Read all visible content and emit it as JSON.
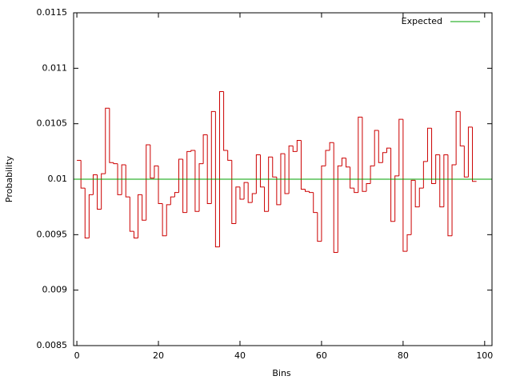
{
  "chart_data": {
    "type": "histogram",
    "x_label": "Bins",
    "y_label": "Probability",
    "bins": [
      0,
      1,
      2,
      3,
      4,
      5,
      6,
      7,
      8,
      9,
      10,
      11,
      12,
      13,
      14,
      15,
      16,
      17,
      18,
      19,
      20,
      21,
      22,
      23,
      24,
      25,
      26,
      27,
      28,
      29,
      30,
      31,
      32,
      33,
      34,
      35,
      36,
      37,
      38,
      39,
      40,
      41,
      42,
      43,
      44,
      45,
      46,
      47,
      48,
      49,
      50,
      51,
      52,
      53,
      54,
      55,
      56,
      57,
      58,
      59,
      60,
      61,
      62,
      63,
      64,
      65,
      66,
      67,
      68,
      69,
      70,
      71,
      72,
      73,
      74,
      75,
      76,
      77,
      78,
      79,
      80,
      81,
      82,
      83,
      84,
      85,
      86,
      87,
      88,
      89,
      90,
      91,
      92,
      93,
      94,
      95,
      96,
      97,
      98
    ],
    "values": [
      0.01017,
      0.00992,
      0.00947,
      0.00986,
      0.01004,
      0.00973,
      0.01005,
      0.01064,
      0.01015,
      0.01014,
      0.00986,
      0.01013,
      0.00984,
      0.00953,
      0.00947,
      0.00986,
      0.00963,
      0.01031,
      0.01001,
      0.01012,
      0.00978,
      0.00949,
      0.00977,
      0.00984,
      0.00988,
      0.01018,
      0.0097,
      0.01025,
      0.01026,
      0.00971,
      0.01014,
      0.0104,
      0.00978,
      0.01061,
      0.00939,
      0.01079,
      0.01026,
      0.01017,
      0.0096,
      0.00993,
      0.00982,
      0.00997,
      0.00979,
      0.00987,
      0.01022,
      0.00993,
      0.00971,
      0.0102,
      0.01002,
      0.00977,
      0.01023,
      0.00987,
      0.0103,
      0.01025,
      0.01035,
      0.00991,
      0.00989,
      0.00988,
      0.0097,
      0.00944,
      0.01012,
      0.01026,
      0.01033,
      0.00934,
      0.01012,
      0.01019,
      0.01011,
      0.00992,
      0.00988,
      0.01056,
      0.00989,
      0.00996,
      0.01012,
      0.01044,
      0.01015,
      0.01024,
      0.01028,
      0.00962,
      0.01003,
      0.01054,
      0.00935,
      0.0095,
      0.00999,
      0.00975,
      0.00992,
      0.01016,
      0.01046,
      0.00996,
      0.01022,
      0.00975,
      0.01022,
      0.00949,
      0.01013,
      0.01061,
      0.0103,
      0.01002,
      0.01047,
      0.00998
    ],
    "color": "#cc0000",
    "expected": {
      "name": "Expected",
      "value": 0.01,
      "color": "#00a000"
    },
    "xlim": [
      -0.8,
      101.8
    ],
    "ylim": [
      0.0085,
      0.0115
    ],
    "xticks": [
      0,
      20,
      40,
      60,
      80,
      100
    ],
    "yticks": [
      0.0085,
      0.009,
      0.0095,
      0.01,
      0.0105,
      0.011,
      0.0115
    ],
    "legend": "upper right"
  }
}
